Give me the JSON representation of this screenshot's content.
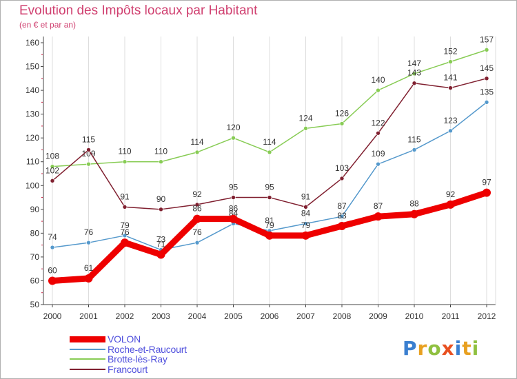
{
  "title": "Evolution des Impôts locaux par Habitant",
  "subtitle": "(en € et par an)",
  "chart_data": {
    "type": "line",
    "title": "Evolution des Impôts locaux par Habitant",
    "subtitle": "(en € et par an)",
    "x": [
      "2000",
      "2001",
      "2002",
      "2003",
      "2004",
      "2005",
      "2006",
      "2007",
      "2008",
      "2009",
      "2010",
      "2011",
      "2012"
    ],
    "yticks": [
      50,
      60,
      70,
      80,
      90,
      100,
      110,
      120,
      130,
      140,
      150,
      160
    ],
    "ylim": [
      50,
      160
    ],
    "grid": "vertical",
    "legend_position": "bottom-left",
    "series": [
      {
        "name": "Brotte-lès-Ray",
        "color": "#88cc55",
        "values": [
          108,
          109,
          110,
          110,
          114,
          120,
          114,
          124,
          126,
          140,
          147,
          152,
          157
        ]
      },
      {
        "name": "Francourt",
        "color": "#802030",
        "values": [
          102,
          115,
          91,
          90,
          92,
          95,
          95,
          91,
          103,
          122,
          143,
          141,
          145
        ]
      },
      {
        "name": "Roche-et-Raucourt",
        "color": "#5599cc",
        "values": [
          74,
          76,
          79,
          73,
          76,
          84,
          81,
          84,
          87,
          109,
          115,
          123,
          135
        ]
      },
      {
        "name": "VOLON",
        "color": "#ee0000",
        "values": [
          60,
          61,
          76,
          71,
          86,
          86,
          79,
          79,
          83,
          87,
          88,
          92,
          97
        ]
      }
    ]
  },
  "legend": [
    {
      "label": "VOLON",
      "color": "#ee0000",
      "thick": true
    },
    {
      "label": "Roche-et-Raucourt",
      "color": "#5599cc",
      "thick": false
    },
    {
      "label": "Brotte-lès-Ray",
      "color": "#88cc55",
      "thick": false
    },
    {
      "label": "Francourt",
      "color": "#802030",
      "thick": false
    }
  ],
  "logo": {
    "text": "Proxiti",
    "letters": [
      {
        "ch": "P",
        "color": "#3a7fd0"
      },
      {
        "ch": "r",
        "color": "#e8a020"
      },
      {
        "ch": "o",
        "color": "#8fc040"
      },
      {
        "ch": "x",
        "color": "#e85020"
      },
      {
        "ch": "i",
        "color": "#3a7fd0"
      },
      {
        "ch": "t",
        "color": "#e8a020"
      },
      {
        "ch": "i",
        "color": "#8fc040"
      }
    ]
  }
}
